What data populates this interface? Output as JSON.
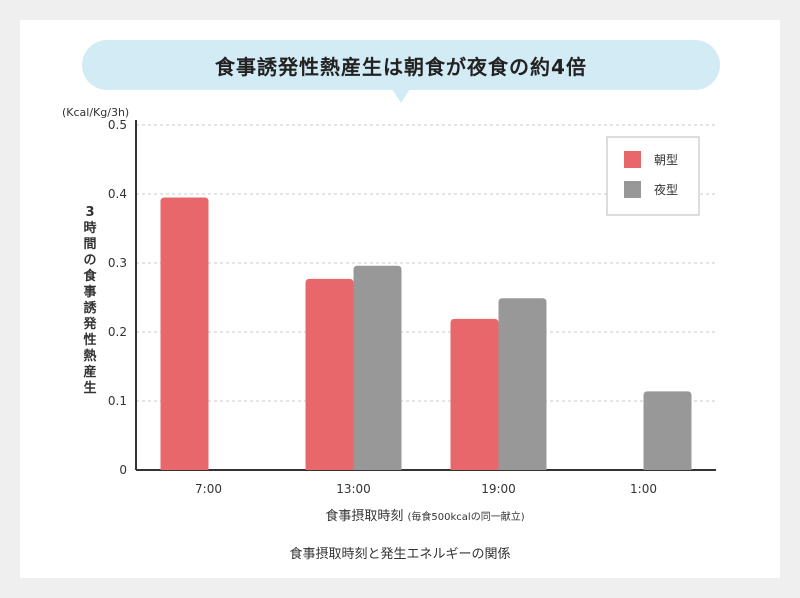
{
  "banner": {
    "text": "食事誘発性熱産生は朝食が夜食の約4倍"
  },
  "chart_data": {
    "type": "bar",
    "unit_label": "(Kcal/Kg/3h)",
    "ylabel": "3時間の食事誘発性熱産生",
    "xlabel": "食事摂取時刻",
    "xlabel_note": "(毎食500kcalの同一献立)",
    "categories": [
      "7:00",
      "13:00",
      "19:00",
      "1:00"
    ],
    "series": [
      {
        "name": "朝型",
        "color": "#e8676a",
        "values": [
          0.395,
          0.277,
          0.219,
          null
        ]
      },
      {
        "name": "夜型",
        "color": "#989898",
        "values": [
          null,
          0.296,
          0.249,
          0.114
        ]
      }
    ],
    "ylim": [
      0,
      0.5
    ],
    "yticks": [
      {
        "value": 0,
        "label": "0"
      },
      {
        "value": 0.1,
        "label": "0.1"
      },
      {
        "value": 0.2,
        "label": "0.2"
      },
      {
        "value": 0.3,
        "label": "0.3"
      },
      {
        "value": 0.4,
        "label": "0.4"
      },
      {
        "value": 0.5,
        "label": "0.5"
      }
    ],
    "grid": true,
    "legend_position": "top-right"
  },
  "caption": "食事摂取時刻と発生エネルギーの関係"
}
